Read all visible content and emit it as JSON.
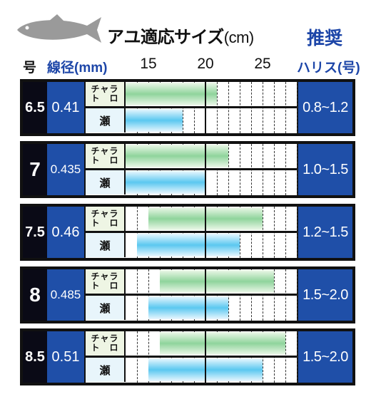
{
  "title": "アユ適応サイズ",
  "title_unit": "(cm)",
  "recommend_label": "推奨",
  "headers": {
    "gou": "号",
    "sen": "線径(mm)",
    "harisu": "ハリス(号)"
  },
  "labels": {
    "chara": [
      "チャラ",
      "ト　ロ"
    ],
    "se": "瀬"
  },
  "colors": {
    "navy": "#1f4fa8",
    "green": "#8fd49c",
    "blue": "#5bc8f0",
    "accent_text": "#1d46a8"
  },
  "icons": [
    "fish-icon"
  ],
  "chart_data": {
    "type": "bar",
    "subtype": "range",
    "xaxis": {
      "ticks": [
        15,
        20,
        25
      ],
      "range": [
        13,
        30
      ],
      "unit": "cm"
    },
    "rows": [
      {
        "gou": "6.5",
        "sen": "0.41",
        "harisu": "0.8~1.2",
        "chara_toro": [
          13,
          21
        ],
        "se": [
          13,
          18
        ]
      },
      {
        "gou": "7",
        "sen": "0.435",
        "harisu": "1.0~1.5",
        "chara_toro": [
          13,
          22
        ],
        "se": [
          13,
          20
        ]
      },
      {
        "gou": "7.5",
        "sen": "0.46",
        "harisu": "1.2~1.5",
        "chara_toro": [
          15,
          25
        ],
        "se": [
          14,
          23
        ]
      },
      {
        "gou": "8",
        "sen": "0.485",
        "harisu": "1.5~2.0",
        "chara_toro": [
          16,
          26
        ],
        "se": [
          15,
          22
        ]
      },
      {
        "gou": "8.5",
        "sen": "0.51",
        "harisu": "1.5~2.0",
        "chara_toro": [
          16,
          27
        ],
        "se": [
          15,
          25
        ]
      }
    ]
  }
}
